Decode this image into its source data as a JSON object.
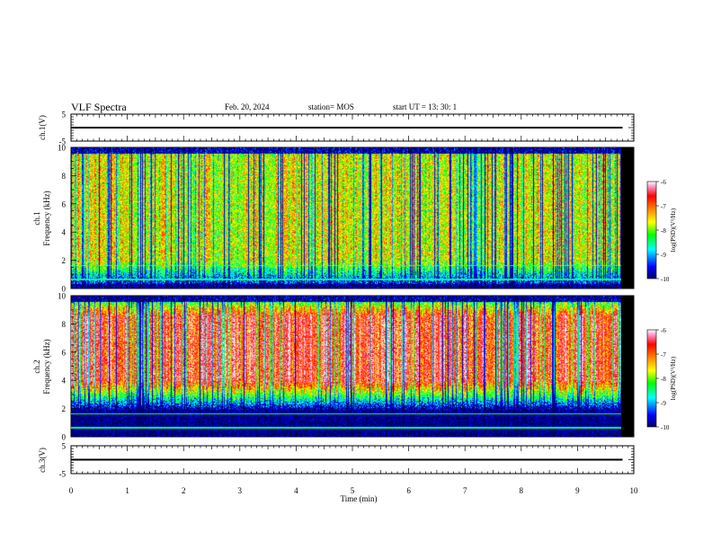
{
  "header": {
    "title": "VLF Spectra",
    "date": "Feb. 20, 2024",
    "station": "station= MOS",
    "start": "start UT =  13: 30: 1"
  },
  "colors": {
    "colormap": [
      "#000066",
      "#0000ff",
      "#00ffff",
      "#00ff00",
      "#ffff00",
      "#ff8000",
      "#ff0000",
      "#ff99cc",
      "#ffffff"
    ],
    "background": "#000000",
    "waveform": "#000000"
  },
  "chart_data": [
    {
      "type": "line",
      "panel": "ch1-waveform",
      "ylabel": "ch.1(V)",
      "ylim": [
        -5,
        5
      ],
      "yticks": [
        "5",
        "-5"
      ],
      "x": [
        0,
        10
      ],
      "values": [
        0,
        0
      ]
    },
    {
      "type": "heatmap",
      "panel": "ch1-spectrogram",
      "ylabel": "ch.1\nFrequency (kHz)",
      "ylim": [
        0,
        10
      ],
      "yticks": [
        "0",
        "2",
        "4",
        "6",
        "8",
        "10"
      ],
      "colorbar": {
        "label": "log(PSD)(V²/Hz)",
        "range": [
          -10,
          -6
        ],
        "ticks": [
          "-6",
          "-7",
          "-8",
          "-9",
          "-10"
        ]
      },
      "dominant_band_khz": [
        2,
        9.5
      ],
      "typical_log_psd": -8
    },
    {
      "type": "heatmap",
      "panel": "ch2-spectrogram",
      "ylabel": "ch.2\nFrequency (kHz)",
      "ylim": [
        0,
        10
      ],
      "yticks": [
        "0",
        "2",
        "4",
        "6",
        "8",
        "10"
      ],
      "colorbar": {
        "label": "log(PSD)(V²/Hz)",
        "range": [
          -10,
          -6
        ],
        "ticks": [
          "-6",
          "-7",
          "-8",
          "-9",
          "-10"
        ]
      },
      "dominant_band_khz": [
        4,
        8.5
      ],
      "typical_log_psd": -7
    },
    {
      "type": "line",
      "panel": "ch3-waveform",
      "ylabel": "ch.3(V)",
      "ylim": [
        -5,
        5
      ],
      "yticks": [
        "5",
        "-5"
      ],
      "x": [
        0,
        10
      ],
      "values": [
        0,
        0
      ]
    }
  ],
  "xaxis": {
    "label": "Time (min)",
    "ticks": [
      "0",
      "1",
      "2",
      "3",
      "4",
      "5",
      "6",
      "7",
      "8",
      "9",
      "10"
    ],
    "range": [
      0,
      10
    ],
    "data_end": 9.8
  }
}
